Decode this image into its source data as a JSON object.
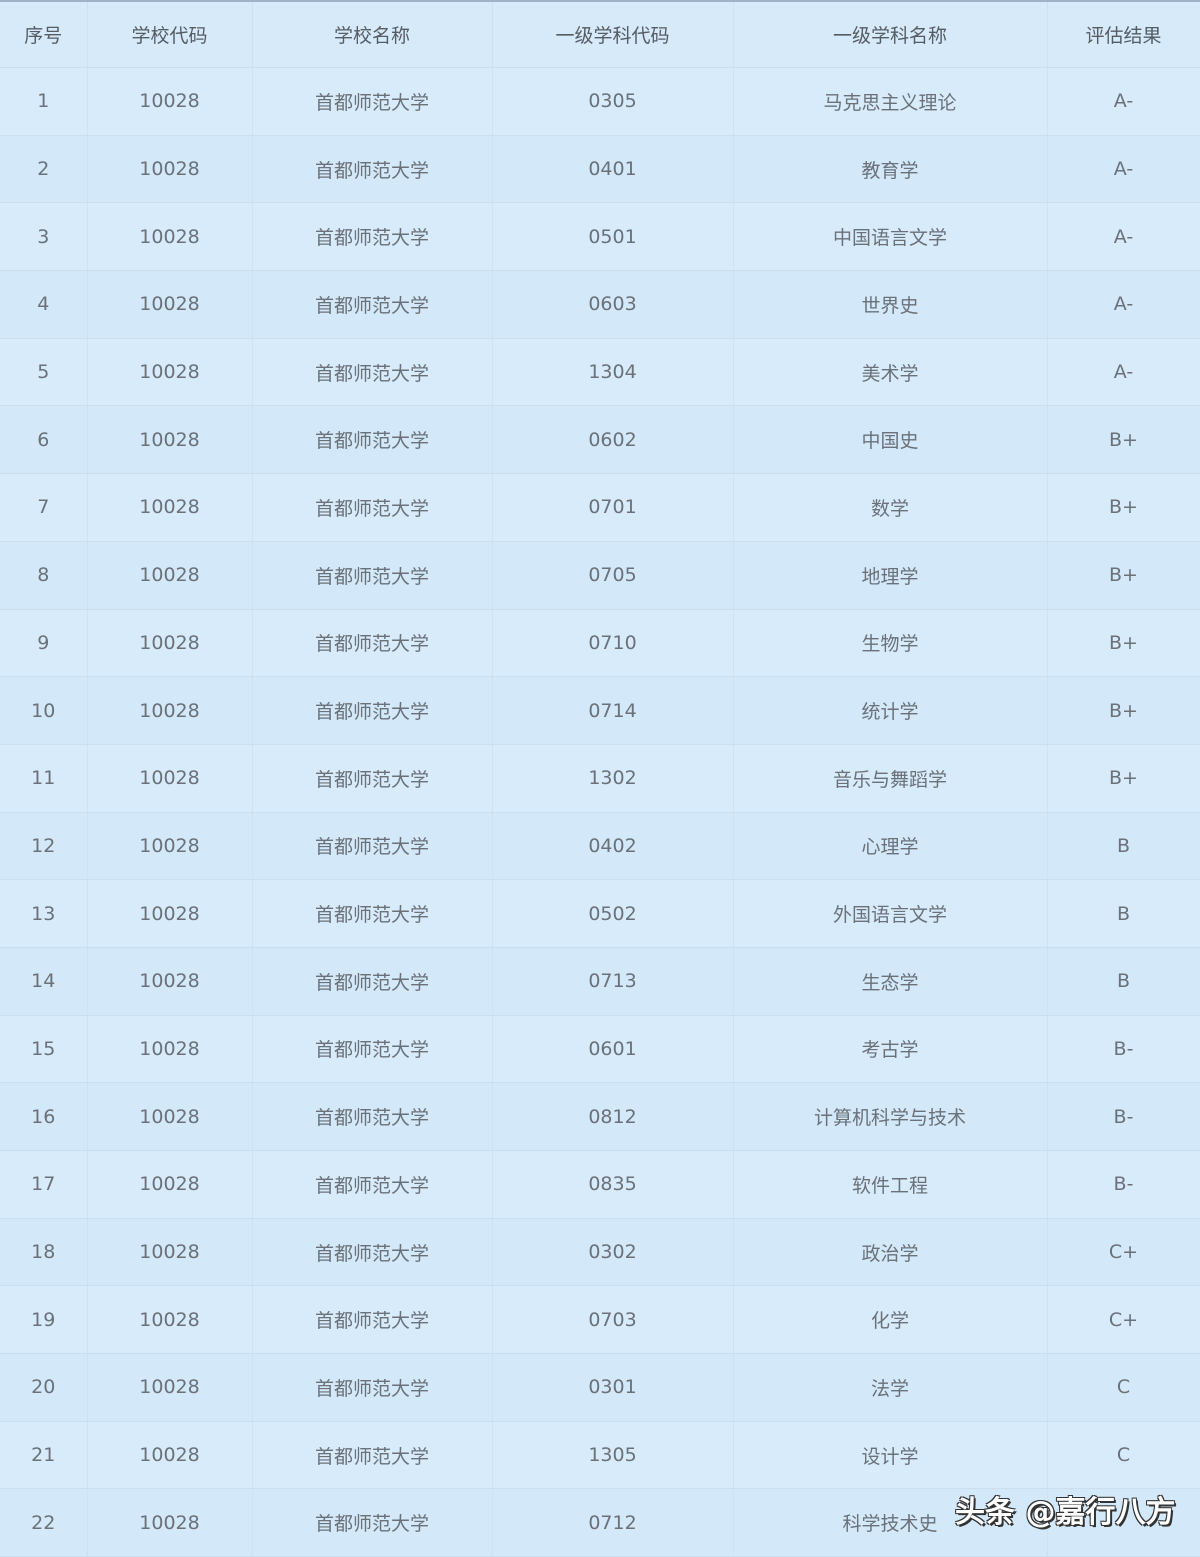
{
  "columns": [
    "序号",
    "学校代码",
    "学校名称",
    "一级学科代码",
    "一级学科名称",
    "评估结果"
  ],
  "rows": [
    [
      "1",
      "10028",
      "首都师范大学",
      "0305",
      "马克思主义理论",
      "A-"
    ],
    [
      "2",
      "10028",
      "首都师范大学",
      "0401",
      "教育学",
      "A-"
    ],
    [
      "3",
      "10028",
      "首都师范大学",
      "0501",
      "中国语言文学",
      "A-"
    ],
    [
      "4",
      "10028",
      "首都师范大学",
      "0603",
      "世界史",
      "A-"
    ],
    [
      "5",
      "10028",
      "首都师范大学",
      "1304",
      "美术学",
      "A-"
    ],
    [
      "6",
      "10028",
      "首都师范大学",
      "0602",
      "中国史",
      "B+"
    ],
    [
      "7",
      "10028",
      "首都师范大学",
      "0701",
      "数学",
      "B+"
    ],
    [
      "8",
      "10028",
      "首都师范大学",
      "0705",
      "地理学",
      "B+"
    ],
    [
      "9",
      "10028",
      "首都师范大学",
      "0710",
      "生物学",
      "B+"
    ],
    [
      "10",
      "10028",
      "首都师范大学",
      "0714",
      "统计学",
      "B+"
    ],
    [
      "11",
      "10028",
      "首都师范大学",
      "1302",
      "音乐与舞蹈学",
      "B+"
    ],
    [
      "12",
      "10028",
      "首都师范大学",
      "0402",
      "心理学",
      "B"
    ],
    [
      "13",
      "10028",
      "首都师范大学",
      "0502",
      "外国语言文学",
      "B"
    ],
    [
      "14",
      "10028",
      "首都师范大学",
      "0713",
      "生态学",
      "B"
    ],
    [
      "15",
      "10028",
      "首都师范大学",
      "0601",
      "考古学",
      "B-"
    ],
    [
      "16",
      "10028",
      "首都师范大学",
      "0812",
      "计算机科学与技术",
      "B-"
    ],
    [
      "17",
      "10028",
      "首都师范大学",
      "0835",
      "软件工程",
      "B-"
    ],
    [
      "18",
      "10028",
      "首都师范大学",
      "0302",
      "政治学",
      "C+"
    ],
    [
      "19",
      "10028",
      "首都师范大学",
      "0703",
      "化学",
      "C+"
    ],
    [
      "20",
      "10028",
      "首都师范大学",
      "0301",
      "法学",
      "C"
    ],
    [
      "21",
      "10028",
      "首都师范大学",
      "1305",
      "设计学",
      "C"
    ],
    [
      "22",
      "10028",
      "首都师范大学",
      "0712",
      "科学技术史",
      "C"
    ]
  ],
  "watermark": "头条 @嘉行八方"
}
